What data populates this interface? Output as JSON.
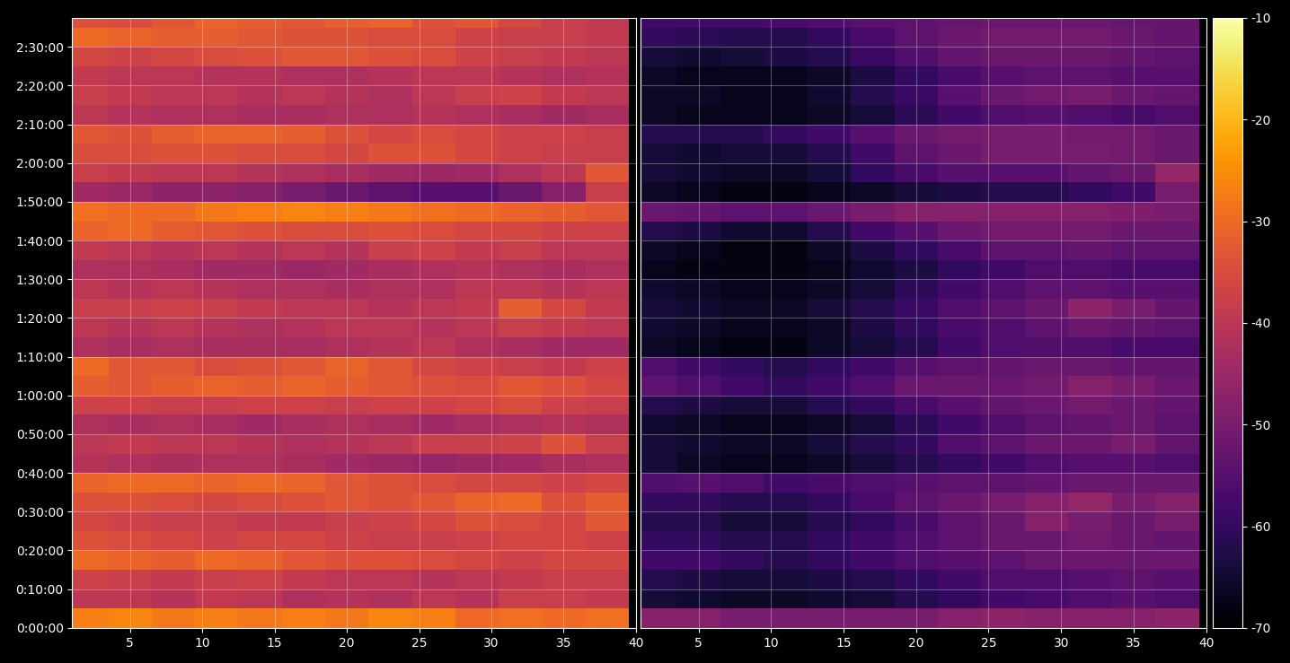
{
  "chart_data": [
    {
      "type": "heatmap",
      "x": [
        2,
        5,
        8,
        11,
        14,
        17,
        20,
        23,
        26,
        29,
        32,
        35,
        38
      ],
      "y": [
        150,
        450,
        750,
        1050,
        1350,
        1650,
        1950,
        2250,
        2550,
        2850,
        3150,
        3450,
        3750,
        4050,
        4350,
        4650,
        4950,
        5250,
        5550,
        5850,
        6150,
        6450,
        6750,
        7050,
        7350,
        7650,
        7950,
        8250,
        8550,
        8850,
        9150,
        9450
      ],
      "cells": [
        [
          -27,
          -26,
          -28,
          -27,
          -28,
          -27,
          -28,
          -26,
          -27,
          -30,
          -29,
          -30,
          -29
        ],
        [
          -40,
          -40,
          -41,
          -39,
          -40,
          -42,
          -41,
          -42,
          -40,
          -41,
          -38,
          -38,
          -39
        ],
        [
          -37,
          -38,
          -39,
          -38,
          -37,
          -39,
          -40,
          -40,
          -41,
          -40,
          -39,
          -38,
          -38
        ],
        [
          -30,
          -31,
          -32,
          -30,
          -31,
          -33,
          -34,
          -34,
          -35,
          -36,
          -37,
          -36,
          -36
        ],
        [
          -34,
          -35,
          -36,
          -37,
          -36,
          -36,
          -37,
          -38,
          -38,
          -37,
          -36,
          -36,
          -37
        ],
        [
          -36,
          -37,
          -38,
          -38,
          -39,
          -39,
          -38,
          -37,
          -36,
          -34,
          -35,
          -36,
          -33
        ],
        [
          -34,
          -34,
          -35,
          -36,
          -35,
          -34,
          -33,
          -34,
          -33,
          -31,
          -30,
          -34,
          -32
        ],
        [
          -31,
          -30,
          -30,
          -31,
          -30,
          -31,
          -33,
          -34,
          -35,
          -36,
          -36,
          -37,
          -36
        ],
        [
          -41,
          -42,
          -43,
          -42,
          -42,
          -43,
          -44,
          -45,
          -46,
          -45,
          -44,
          -43,
          -42
        ],
        [
          -40,
          -39,
          -40,
          -40,
          -41,
          -42,
          -41,
          -40,
          -38,
          -38,
          -37,
          -34,
          -38
        ],
        [
          -42,
          -43,
          -42,
          -43,
          -44,
          -43,
          -42,
          -43,
          -44,
          -43,
          -42,
          -41,
          -42
        ],
        [
          -37,
          -37,
          -38,
          -38,
          -37,
          -37,
          -38,
          -37,
          -37,
          -36,
          -35,
          -37,
          -38
        ],
        [
          -32,
          -33,
          -32,
          -31,
          -32,
          -31,
          -32,
          -33,
          -34,
          -35,
          -33,
          -34,
          -36
        ],
        [
          -30,
          -33,
          -33,
          -35,
          -34,
          -33,
          -31,
          -33,
          -36,
          -37,
          -38,
          -39,
          -37
        ],
        [
          -42,
          -43,
          -42,
          -43,
          -43,
          -43,
          -42,
          -41,
          -40,
          -42,
          -43,
          -44,
          -44
        ],
        [
          -40,
          -41,
          -40,
          -41,
          -42,
          -41,
          -40,
          -40,
          -41,
          -40,
          -38,
          -39,
          -40
        ],
        [
          -38,
          -38,
          -37,
          -38,
          -39,
          -40,
          -40,
          -41,
          -40,
          -39,
          -32,
          -36,
          -39
        ],
        [
          -40,
          -41,
          -40,
          -41,
          -42,
          -42,
          -43,
          -42,
          -42,
          -40,
          -40,
          -41,
          -40
        ],
        [
          -42,
          -42,
          -43,
          -44,
          -44,
          -45,
          -44,
          -43,
          -42,
          -41,
          -42,
          -43,
          -42
        ],
        [
          -39,
          -40,
          -41,
          -40,
          -41,
          -40,
          -41,
          -38,
          -37,
          -39,
          -38,
          -40,
          -40
        ],
        [
          -31,
          -30,
          -32,
          -33,
          -34,
          -35,
          -35,
          -34,
          -35,
          -36,
          -36,
          -37,
          -37
        ],
        [
          -29,
          -30,
          -30,
          -28,
          -27,
          -26,
          -27,
          -28,
          -29,
          -30,
          -31,
          -32,
          -33
        ],
        [
          -44,
          -45,
          -47,
          -47,
          -48,
          -50,
          -52,
          -54,
          -55,
          -55,
          -52,
          -48,
          -38
        ],
        [
          -38,
          -39,
          -40,
          -40,
          -41,
          -42,
          -43,
          -44,
          -45,
          -44,
          -42,
          -40,
          -33
        ],
        [
          -35,
          -35,
          -34,
          -34,
          -35,
          -35,
          -36,
          -34,
          -34,
          -36,
          -37,
          -38,
          -38
        ],
        [
          -33,
          -34,
          -32,
          -31,
          -31,
          -32,
          -34,
          -36,
          -35,
          -36,
          -37,
          -37,
          -38
        ],
        [
          -40,
          -41,
          -42,
          -42,
          -43,
          -43,
          -42,
          -42,
          -41,
          -42,
          -43,
          -44,
          -43
        ],
        [
          -38,
          -39,
          -40,
          -40,
          -41,
          -40,
          -41,
          -42,
          -40,
          -38,
          -37,
          -39,
          -40
        ],
        [
          -39,
          -40,
          -40,
          -41,
          -41,
          -42,
          -42,
          -41,
          -40,
          -40,
          -41,
          -42,
          -41
        ],
        [
          -36,
          -37,
          -36,
          -35,
          -34,
          -33,
          -33,
          -34,
          -35,
          -37,
          -38,
          -39,
          -40
        ],
        [
          -30,
          -31,
          -32,
          -32,
          -33,
          -34,
          -34,
          -35,
          -35,
          -37,
          -38,
          -38,
          -39
        ],
        [
          -34,
          -35,
          -33,
          -31,
          -32,
          -33,
          -32,
          -31,
          -34,
          -33,
          -36,
          -38,
          -39
        ]
      ],
      "xlim": [
        1,
        40
      ],
      "xticks": [
        5,
        10,
        15,
        20,
        25,
        30,
        35,
        40
      ],
      "ylim": [
        0,
        9450
      ],
      "yticks": [
        {
          "value": 0,
          "label": "0:00:00"
        },
        {
          "value": 600,
          "label": "0:10:00"
        },
        {
          "value": 1200,
          "label": "0:20:00"
        },
        {
          "value": 1800,
          "label": "0:30:00"
        },
        {
          "value": 2400,
          "label": "0:40:00"
        },
        {
          "value": 3000,
          "label": "0:50:00"
        },
        {
          "value": 3600,
          "label": "1:00:00"
        },
        {
          "value": 4200,
          "label": "1:10:00"
        },
        {
          "value": 4800,
          "label": "1:20:00"
        },
        {
          "value": 5400,
          "label": "1:30:00"
        },
        {
          "value": 6000,
          "label": "1:40:00"
        },
        {
          "value": 6600,
          "label": "1:50:00"
        },
        {
          "value": 7200,
          "label": "2:00:00"
        },
        {
          "value": 7800,
          "label": "2:10:00"
        },
        {
          "value": 8400,
          "label": "2:20:00"
        },
        {
          "value": 9000,
          "label": "2:30:00"
        }
      ],
      "grid": true
    },
    {
      "type": "heatmap",
      "x": [
        2,
        5,
        8,
        11,
        14,
        17,
        20,
        23,
        26,
        29,
        32,
        35,
        38
      ],
      "y": [
        150,
        450,
        750,
        1050,
        1350,
        1650,
        1950,
        2250,
        2550,
        2850,
        3150,
        3450,
        3750,
        4050,
        4350,
        4650,
        4950,
        5250,
        5550,
        5850,
        6150,
        6450,
        6750,
        7050,
        7350,
        7650,
        7950,
        8250,
        8550,
        8850,
        9150,
        9450
      ],
      "cells": [
        [
          -48,
          -48,
          -50,
          -50,
          -50,
          -50,
          -50,
          -48,
          -47,
          -48,
          -48,
          -48,
          -47
        ],
        [
          -64,
          -65,
          -66,
          -66,
          -65,
          -64,
          -62,
          -60,
          -58,
          -57,
          -56,
          -55,
          -56
        ],
        [
          -62,
          -63,
          -64,
          -64,
          -63,
          -62,
          -60,
          -58,
          -56,
          -56,
          -55,
          -54,
          -55
        ],
        [
          -58,
          -58,
          -60,
          -62,
          -60,
          -58,
          -56,
          -55,
          -54,
          -52,
          -52,
          -52,
          -52
        ],
        [
          -60,
          -60,
          -62,
          -62,
          -60,
          -58,
          -56,
          -54,
          -52,
          -52,
          -51,
          -52,
          -53
        ],
        [
          -62,
          -62,
          -64,
          -64,
          -62,
          -60,
          -57,
          -54,
          -52,
          -48,
          -50,
          -52,
          -50
        ],
        [
          -60,
          -60,
          -62,
          -62,
          -60,
          -57,
          -54,
          -52,
          -50,
          -48,
          -46,
          -50,
          -48
        ],
        [
          -56,
          -55,
          -56,
          -58,
          -57,
          -56,
          -55,
          -54,
          -54,
          -53,
          -52,
          -52,
          -52
        ],
        [
          -64,
          -66,
          -67,
          -67,
          -66,
          -64,
          -62,
          -60,
          -58,
          -56,
          -55,
          -55,
          -56
        ],
        [
          -64,
          -65,
          -66,
          -66,
          -64,
          -62,
          -60,
          -56,
          -54,
          -52,
          -52,
          -50,
          -53
        ],
        [
          -65,
          -66,
          -67,
          -67,
          -66,
          -64,
          -61,
          -58,
          -56,
          -54,
          -53,
          -52,
          -54
        ],
        [
          -62,
          -63,
          -64,
          -64,
          -62,
          -60,
          -57,
          -55,
          -53,
          -52,
          -51,
          -52,
          -53
        ],
        [
          -54,
          -56,
          -58,
          -60,
          -58,
          -56,
          -52,
          -52,
          -52,
          -51,
          -48,
          -50,
          -52
        ],
        [
          -56,
          -58,
          -60,
          -62,
          -60,
          -58,
          -55,
          -54,
          -53,
          -52,
          -52,
          -53,
          -53
        ],
        [
          -66,
          -67,
          -68,
          -68,
          -66,
          -64,
          -62,
          -58,
          -56,
          -56,
          -56,
          -57,
          -57
        ],
        [
          -65,
          -66,
          -67,
          -67,
          -66,
          -63,
          -60,
          -57,
          -56,
          -54,
          -52,
          -53,
          -54
        ],
        [
          -64,
          -65,
          -66,
          -66,
          -64,
          -62,
          -59,
          -56,
          -54,
          -52,
          -47,
          -50,
          -53
        ],
        [
          -65,
          -66,
          -67,
          -67,
          -66,
          -64,
          -61,
          -58,
          -56,
          -54,
          -54,
          -55,
          -55
        ],
        [
          -67,
          -68,
          -68,
          -68,
          -67,
          -65,
          -63,
          -60,
          -58,
          -56,
          -56,
          -57,
          -57
        ],
        [
          -66,
          -67,
          -68,
          -68,
          -66,
          -63,
          -60,
          -57,
          -54,
          -54,
          -53,
          -54,
          -54
        ],
        [
          -62,
          -63,
          -65,
          -65,
          -62,
          -58,
          -55,
          -52,
          -51,
          -51,
          -51,
          -52,
          -52
        ],
        [
          -52,
          -53,
          -54,
          -54,
          -52,
          -50,
          -48,
          -48,
          -48,
          -48,
          -48,
          -49,
          -50
        ],
        [
          -66,
          -67,
          -68,
          -68,
          -67,
          -66,
          -64,
          -63,
          -62,
          -62,
          -60,
          -58,
          -50
        ],
        [
          -64,
          -65,
          -66,
          -66,
          -64,
          -60,
          -57,
          -55,
          -55,
          -55,
          -53,
          -52,
          -46
        ],
        [
          -64,
          -65,
          -64,
          -64,
          -62,
          -58,
          -54,
          -52,
          -50,
          -50,
          -50,
          -51,
          -52
        ],
        [
          -62,
          -62,
          -62,
          -60,
          -58,
          -55,
          -52,
          -51,
          -50,
          -50,
          -51,
          -51,
          -52
        ],
        [
          -66,
          -67,
          -67,
          -67,
          -66,
          -64,
          -61,
          -58,
          -56,
          -55,
          -56,
          -57,
          -56
        ],
        [
          -66,
          -66,
          -67,
          -67,
          -65,
          -62,
          -59,
          -55,
          -52,
          -51,
          -50,
          -52,
          -53
        ],
        [
          -66,
          -67,
          -67,
          -67,
          -66,
          -63,
          -60,
          -57,
          -55,
          -54,
          -54,
          -55,
          -55
        ],
        [
          -64,
          -65,
          -64,
          -63,
          -62,
          -59,
          -56,
          -53,
          -52,
          -52,
          -52,
          -53,
          -54
        ],
        [
          -60,
          -61,
          -62,
          -62,
          -60,
          -57,
          -54,
          -52,
          -51,
          -51,
          -51,
          -52,
          -53
        ],
        [
          -58,
          -58,
          -58,
          -57,
          -56,
          -55,
          -54,
          -53,
          -52,
          -52,
          -52,
          -53,
          -53
        ]
      ],
      "xlim": [
        1,
        40
      ],
      "xticks": [
        5,
        10,
        15,
        20,
        25,
        30,
        35,
        40
      ],
      "ylim": [
        0,
        9450
      ],
      "yticks": [
        {
          "value": 0,
          "label": "0:00:00"
        },
        {
          "value": 600,
          "label": "0:10:00"
        },
        {
          "value": 1200,
          "label": "0:20:00"
        },
        {
          "value": 1800,
          "label": "0:30:00"
        },
        {
          "value": 2400,
          "label": "0:40:00"
        },
        {
          "value": 3000,
          "label": "0:50:00"
        },
        {
          "value": 3600,
          "label": "1:00:00"
        },
        {
          "value": 4200,
          "label": "1:10:00"
        },
        {
          "value": 4800,
          "label": "1:20:00"
        },
        {
          "value": 5400,
          "label": "1:30:00"
        },
        {
          "value": 6000,
          "label": "1:40:00"
        },
        {
          "value": 6600,
          "label": "1:50:00"
        },
        {
          "value": 7200,
          "label": "2:00:00"
        },
        {
          "value": 7800,
          "label": "2:10:00"
        },
        {
          "value": 8400,
          "label": "2:20:00"
        },
        {
          "value": 9000,
          "label": "2:30:00"
        }
      ],
      "grid": true,
      "tick_labels": "x",
      "colorbar_range": [
        -70,
        -10
      ],
      "colorbar_ticks": [
        -10,
        -20,
        -30,
        -40,
        -50,
        -60,
        -70
      ]
    }
  ]
}
